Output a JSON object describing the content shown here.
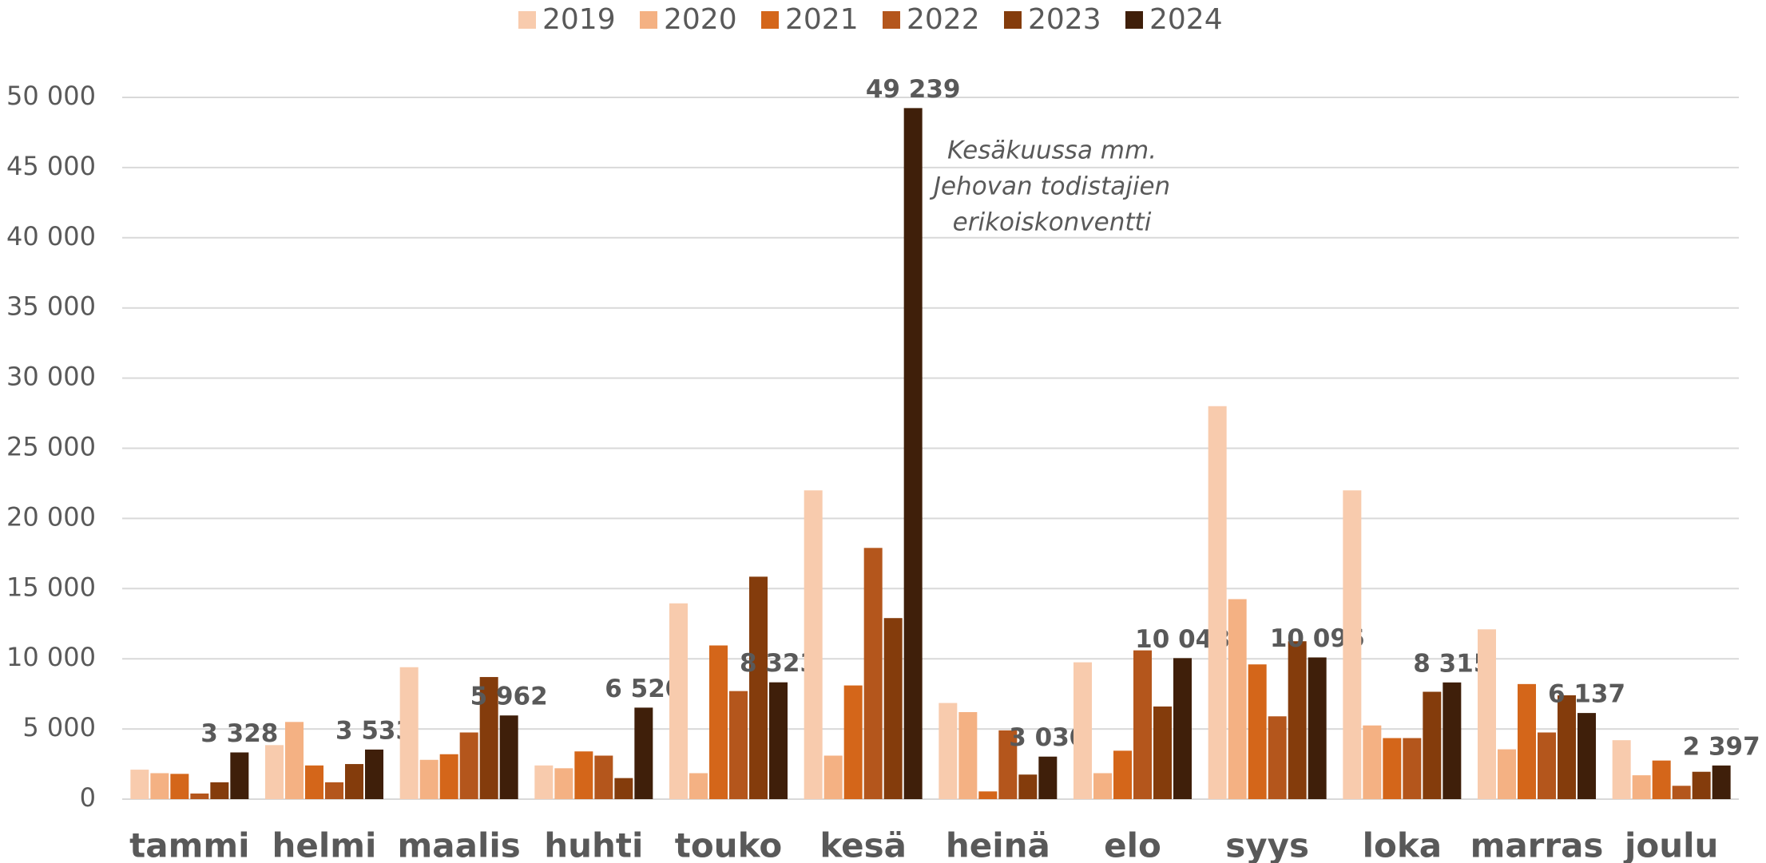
{
  "chart_data": {
    "type": "bar",
    "categories": [
      "tammi",
      "helmi",
      "maalis",
      "huhti",
      "touko",
      "kesä",
      "heinä",
      "elo",
      "syys",
      "loka",
      "marras",
      "joulu"
    ],
    "series": [
      {
        "name": "2019",
        "color": "#f8cbad",
        "values": [
          2100,
          3850,
          9400,
          2400,
          13950,
          22000,
          6850,
          9750,
          28000,
          22000,
          12100,
          4200
        ]
      },
      {
        "name": "2020",
        "color": "#f4b183",
        "values": [
          1850,
          5500,
          2800,
          2200,
          1850,
          3100,
          6200,
          1850,
          14250,
          5250,
          3550,
          1700
        ]
      },
      {
        "name": "2021",
        "color": "#d4661a",
        "values": [
          1800,
          2400,
          3200,
          3400,
          10950,
          8100,
          550,
          3450,
          9600,
          4350,
          8200,
          2750
        ]
      },
      {
        "name": "2022",
        "color": "#b4561c",
        "values": [
          400,
          1200,
          4750,
          3100,
          7700,
          17900,
          4900,
          10600,
          5900,
          4350,
          4750,
          950
        ]
      },
      {
        "name": "2023",
        "color": "#843c0c",
        "values": [
          1200,
          2500,
          8700,
          1500,
          15850,
          12900,
          1750,
          6600,
          11250,
          7650,
          7400,
          1950
        ]
      },
      {
        "name": "2024",
        "color": "#3f1f0a",
        "values": [
          3328,
          3533,
          5962,
          6520,
          8323,
          49239,
          3030,
          10048,
          10096,
          8315,
          6137,
          2397
        ],
        "value_labels": [
          "3 328",
          "3 533",
          "5 962",
          "6 520",
          "8 323",
          "49 239",
          "3 030",
          "10 048",
          "10 096",
          "8 315",
          "6 137",
          "2 397"
        ]
      }
    ],
    "annotation": [
      "Kesäkuussa mm.",
      "Jehovan todistajien",
      "erikoiskonventti"
    ],
    "ylim": [
      0,
      50000
    ],
    "yticks": [
      0,
      {
        "value": 5000,
        "label": "5 000"
      },
      {
        "value": 10000,
        "label": "10 000"
      },
      {
        "value": 15000,
        "label": "15 000"
      },
      {
        "value": 20000,
        "label": "20 000"
      },
      {
        "value": 25000,
        "label": "25 000"
      },
      {
        "value": 30000,
        "label": "30 000"
      },
      {
        "value": 35000,
        "label": "35 000"
      },
      {
        "value": 40000,
        "label": "40 000"
      },
      {
        "value": 45000,
        "label": "45 000"
      },
      {
        "value": 50000,
        "label": "50 000"
      }
    ],
    "grid": true,
    "legend": "top"
  }
}
